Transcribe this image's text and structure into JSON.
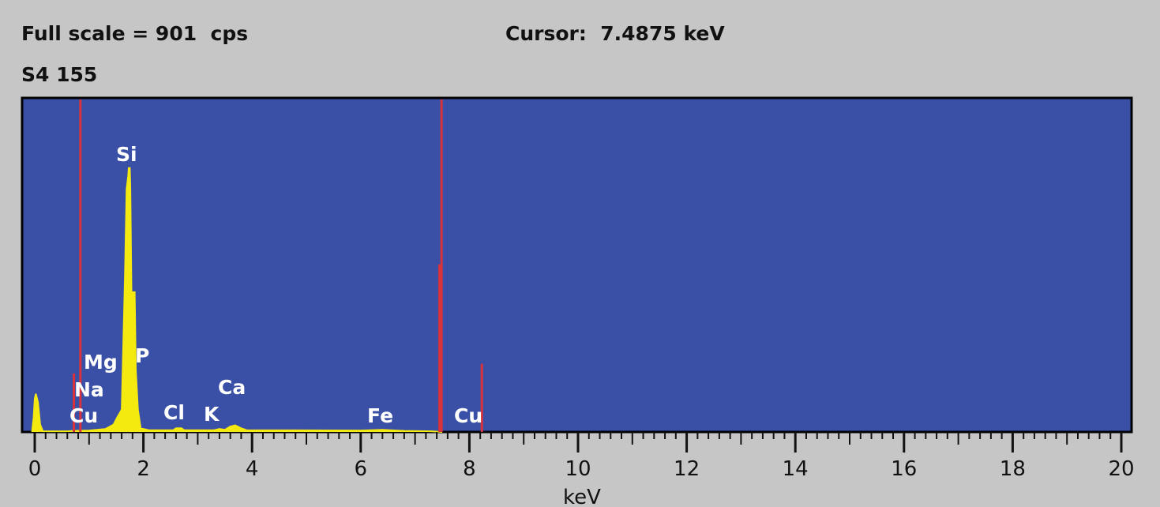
{
  "header": {
    "full_scale": "Full scale = 901  cps",
    "cursor": "Cursor:  7.4875 keV",
    "sample": "S4 155"
  },
  "chart_data": {
    "type": "area",
    "title": "",
    "xlabel": "keV",
    "ylabel": "",
    "xlim": [
      -0.23,
      20.2
    ],
    "ylim": [
      0,
      901
    ],
    "x_ticks": [
      "0",
      "2",
      "4",
      "6",
      "8",
      "10",
      "12",
      "14",
      "16",
      "18",
      "20"
    ],
    "x_tick_values": [
      0,
      2,
      4,
      6,
      8,
      10,
      12,
      14,
      16,
      18,
      20
    ],
    "minor_tick_step_kev": 0.2,
    "grid": false,
    "colors": {
      "background": "#3a50a6",
      "spectrum": "#f5ea10",
      "markers": "#d8323c",
      "labels": "#ffffff"
    },
    "spectrum": [
      [
        -0.05,
        0
      ],
      [
        -0.02,
        40
      ],
      [
        0,
        90
      ],
      [
        0.02,
        103
      ],
      [
        0.06,
        80
      ],
      [
        0.1,
        20
      ],
      [
        0.15,
        2
      ],
      [
        0.6,
        2
      ],
      [
        0.7,
        3
      ],
      [
        1.0,
        4
      ],
      [
        1.3,
        8
      ],
      [
        1.45,
        20
      ],
      [
        1.52,
        40
      ],
      [
        1.6,
        60
      ],
      [
        1.66,
        420
      ],
      [
        1.69,
        655
      ],
      [
        1.72,
        690
      ],
      [
        1.73,
        712
      ],
      [
        1.75,
        712
      ],
      [
        1.76,
        655
      ],
      [
        1.78,
        377
      ],
      [
        1.84,
        377
      ],
      [
        1.86,
        167
      ],
      [
        1.9,
        60
      ],
      [
        1.95,
        10
      ],
      [
        2.1,
        5
      ],
      [
        2.55,
        5
      ],
      [
        2.6,
        10
      ],
      [
        2.7,
        10
      ],
      [
        2.75,
        5
      ],
      [
        3.3,
        5
      ],
      [
        3.4,
        8
      ],
      [
        3.5,
        6
      ],
      [
        3.6,
        15
      ],
      [
        3.69,
        18
      ],
      [
        3.8,
        10
      ],
      [
        3.9,
        5
      ],
      [
        6.0,
        4
      ],
      [
        6.4,
        6
      ],
      [
        6.8,
        3
      ],
      [
        7.3,
        2
      ],
      [
        7.5,
        0
      ]
    ],
    "markers": [
      {
        "kev": 0.72,
        "cps": 158
      },
      {
        "kev": 0.84,
        "cps": 901
      },
      {
        "kev": 7.45,
        "cps": 452
      },
      {
        "kev": 8.23,
        "cps": 184
      }
    ],
    "cursor_kev": 7.4875,
    "element_labels": [
      {
        "text": "Si",
        "kev": 1.74
      },
      {
        "text": "Mg",
        "kev": 1.25
      },
      {
        "text": "P",
        "kev": 2.01
      },
      {
        "text": "Na",
        "kev": 1.04
      },
      {
        "text": "Cu",
        "kev": 0.93
      },
      {
        "text": "Cl",
        "kev": 2.62
      },
      {
        "text": "K",
        "kev": 3.31
      },
      {
        "text": "Ca",
        "kev": 3.69
      },
      {
        "text": "Fe",
        "kev": 6.4
      },
      {
        "text": "Cu",
        "kev": 8.04
      }
    ]
  }
}
